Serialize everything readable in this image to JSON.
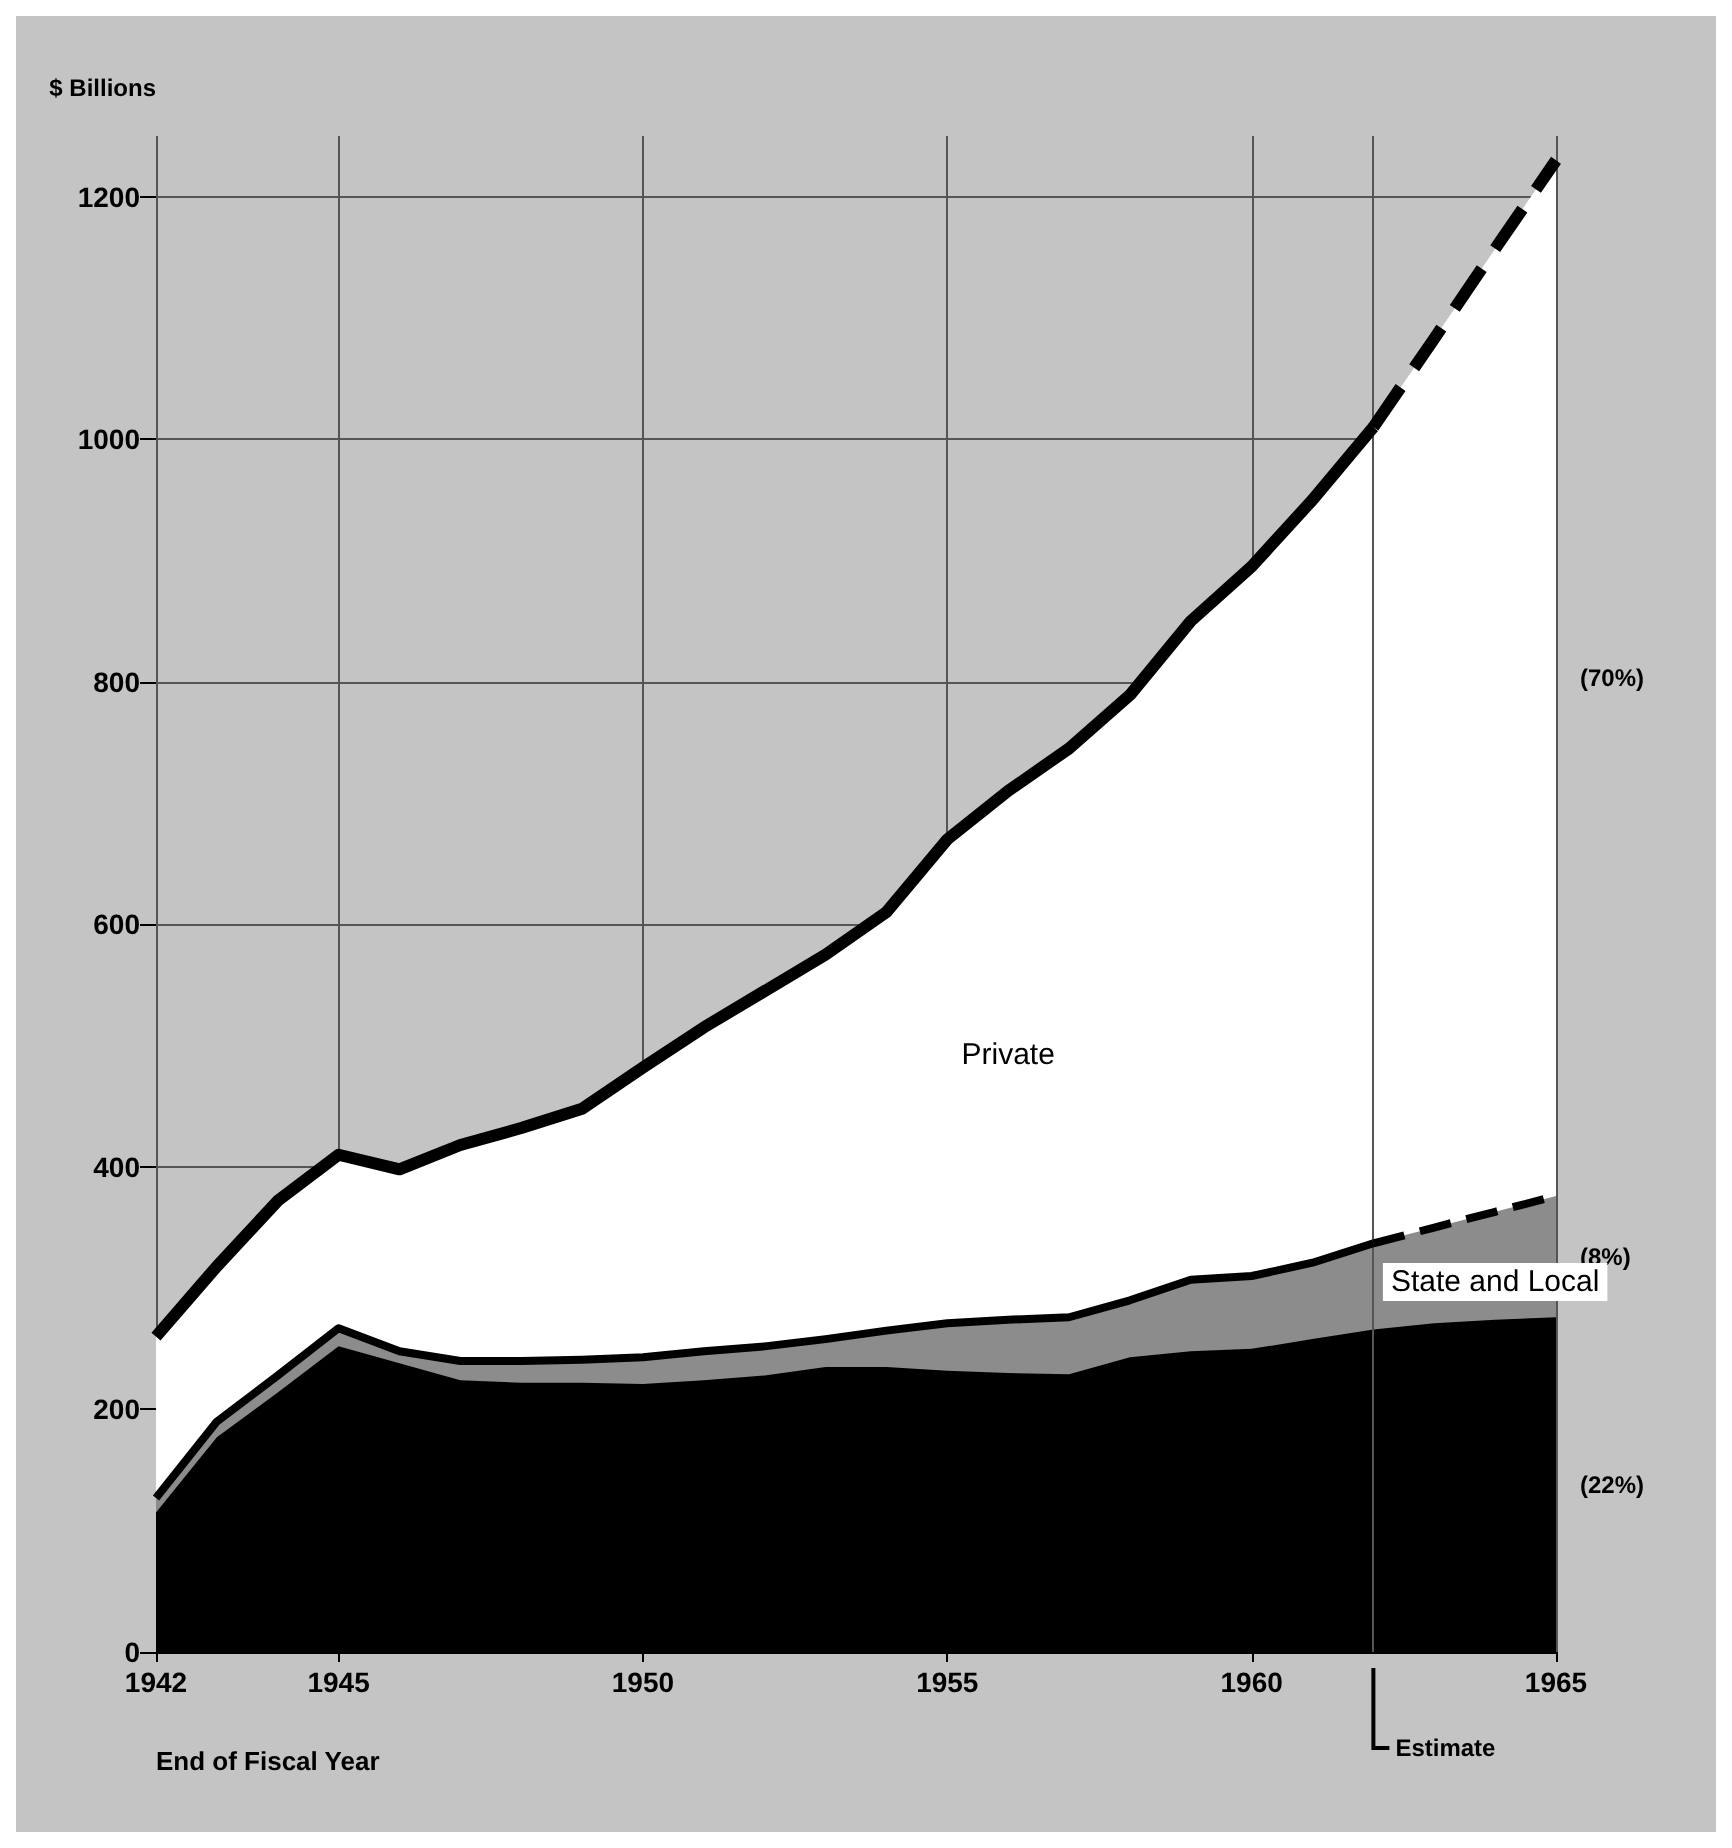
{
  "chart_data": {
    "type": "area",
    "stacked": true,
    "ylabel": "$ Billions",
    "xlabel": "End of Fiscal Year",
    "x": [
      1942,
      1943,
      1944,
      1945,
      1946,
      1947,
      1948,
      1949,
      1950,
      1951,
      1952,
      1953,
      1954,
      1955,
      1956,
      1957,
      1958,
      1959,
      1960,
      1961,
      1962,
      1963,
      1964,
      1965
    ],
    "xlim": [
      1942,
      1965
    ],
    "xticks": [
      1942,
      1945,
      1950,
      1955,
      1960,
      1965
    ],
    "ylim": [
      0,
      1250
    ],
    "yticks": [
      0,
      200,
      400,
      600,
      800,
      1000,
      1200
    ],
    "grid": true,
    "legend": false,
    "series": [
      {
        "color": "#000000",
        "values": [
          115,
          177,
          214,
          252,
          238,
          224,
          222,
          222,
          221,
          224,
          228,
          235,
          235,
          232,
          230,
          229,
          243,
          248,
          250,
          258,
          266,
          271,
          274,
          276
        ]
      },
      {
        "name": "State and Local",
        "color": "#8c8c8c",
        "line_style": "solid",
        "values": [
          12,
          13,
          14,
          15,
          10,
          16,
          18,
          19,
          22,
          24,
          24,
          23,
          30,
          39,
          44,
          47,
          47,
          59,
          60,
          63,
          71,
          79,
          89,
          100
        ]
      },
      {
        "name": "Private",
        "color": "#ffffff",
        "line_style": "solid",
        "values": [
          133,
          128,
          144,
          143,
          150,
          178,
          192,
          207,
          239,
          267,
          293,
          317,
          345,
          399,
          436,
          469,
          499,
          543,
          585,
          629,
          673,
          733,
          794,
          854
        ]
      }
    ],
    "ref_lines": [
      {
        "axis": "x",
        "value": 1962,
        "label": "Estimate"
      }
    ],
    "annotations": [
      "(70%)",
      "(8%)",
      "(22%)"
    ]
  }
}
